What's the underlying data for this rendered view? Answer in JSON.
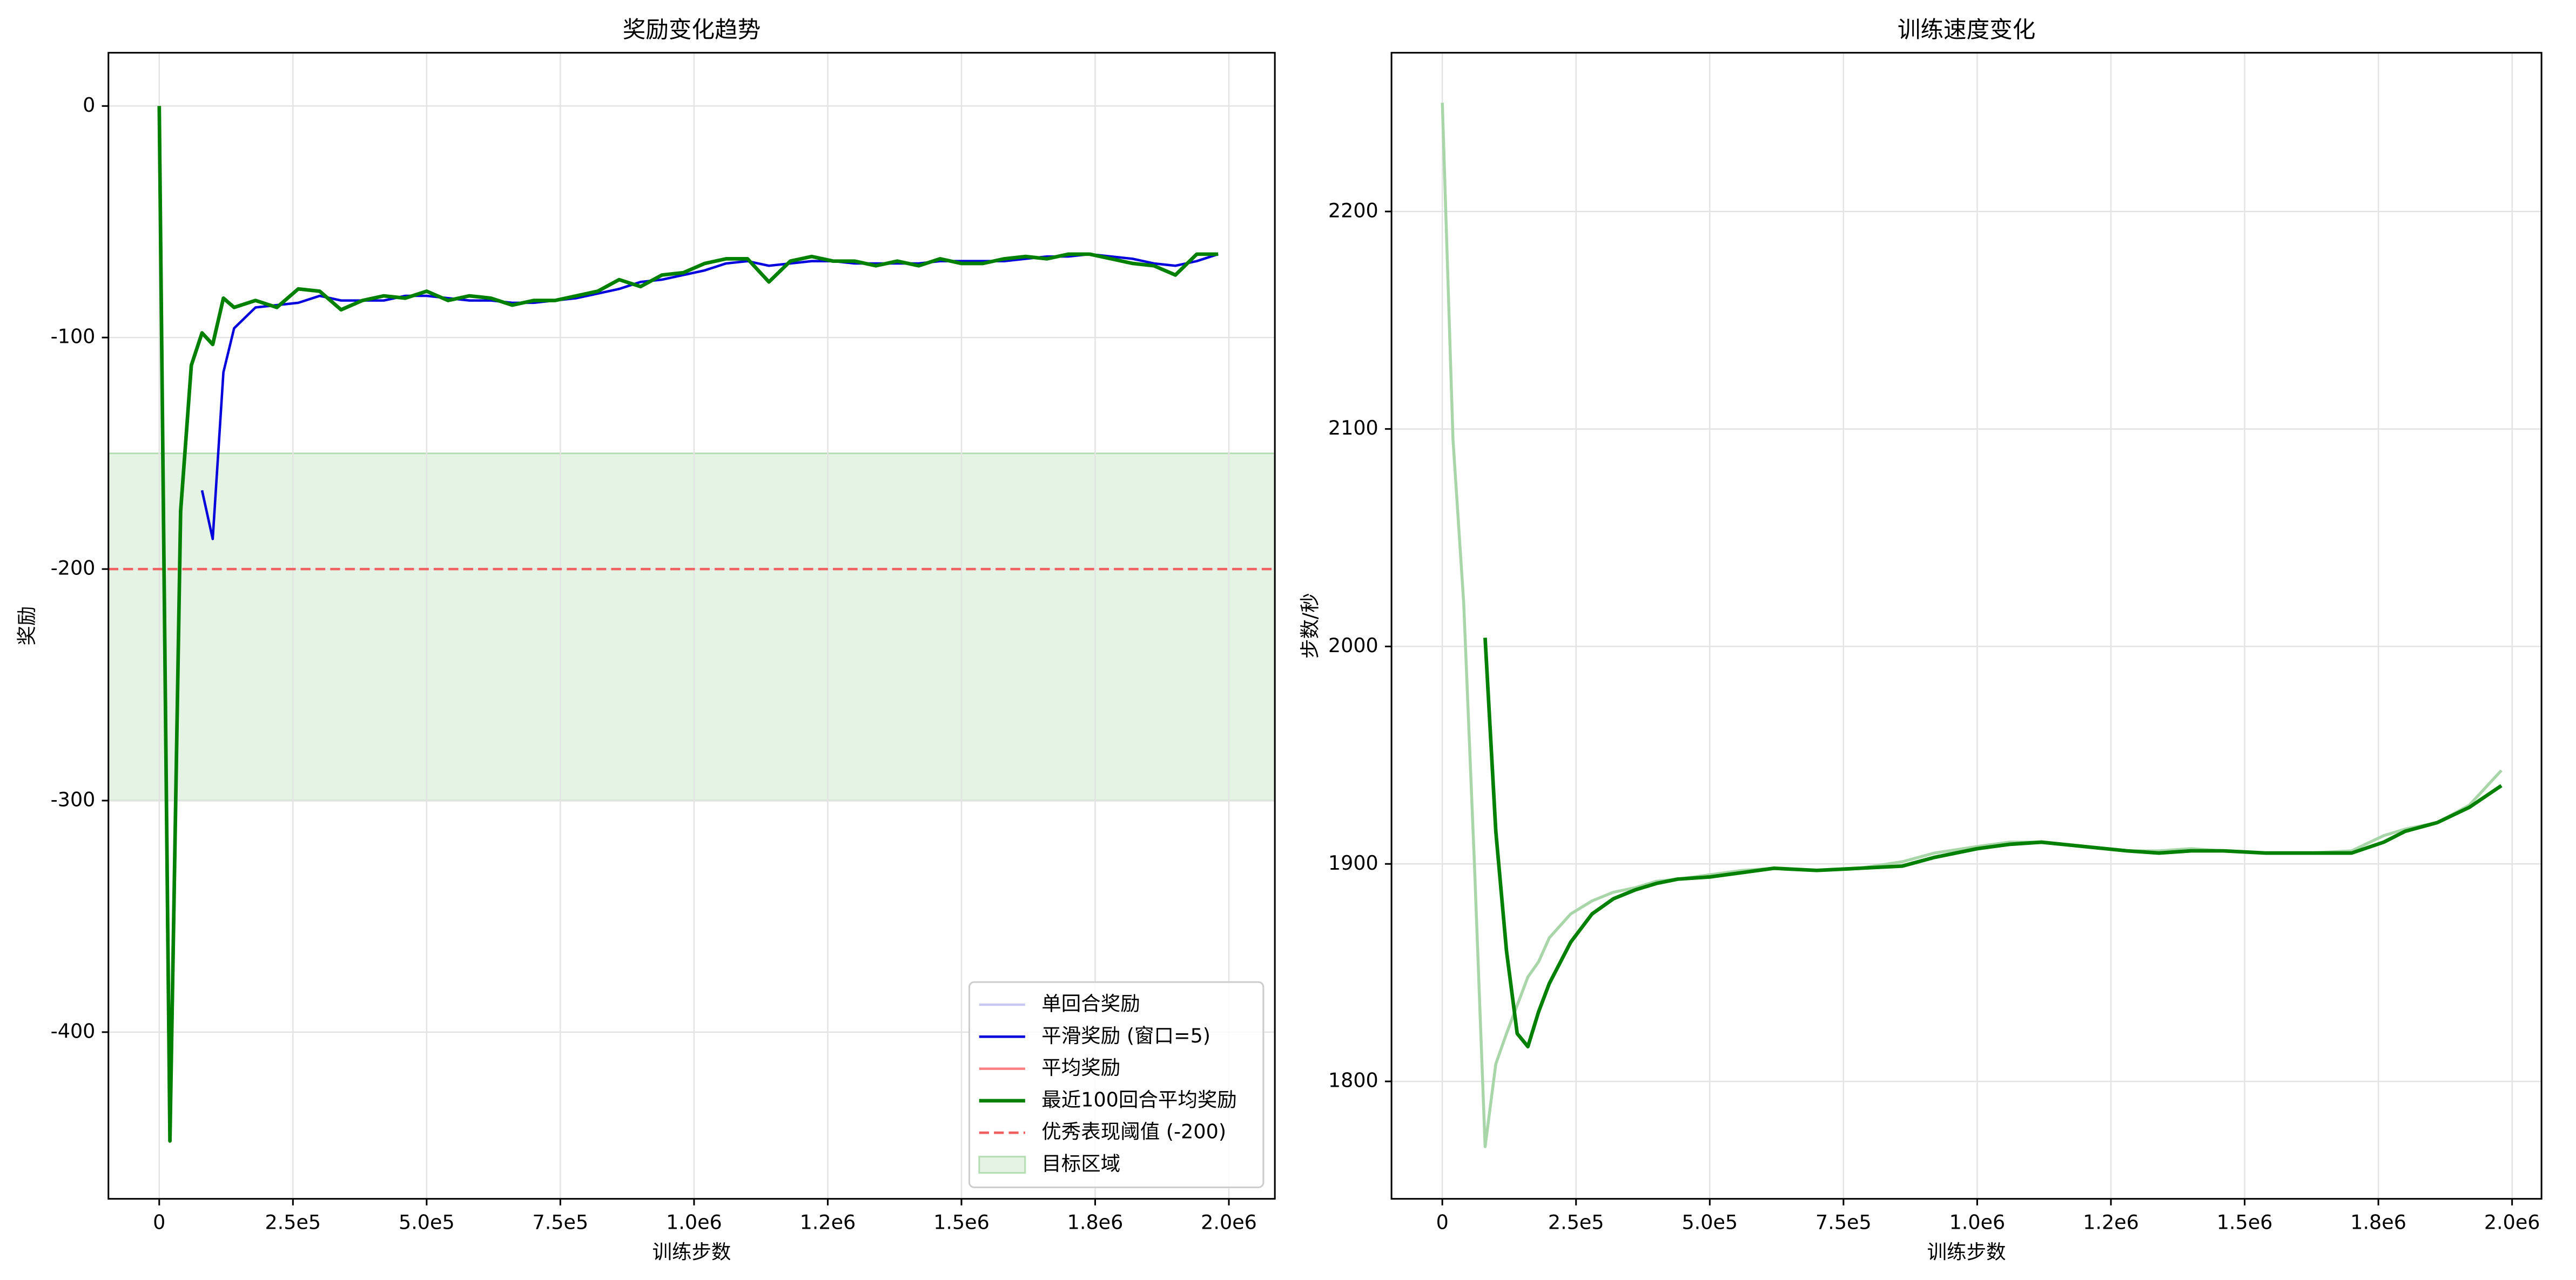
{
  "chart_data": [
    {
      "type": "line",
      "title": "奖励变化趋势",
      "xlabel": "训练步数",
      "ylabel": "奖励",
      "xlim": [
        -95000,
        2086000
      ],
      "ylim": [
        -472,
        23
      ],
      "xticks": [
        0,
        {
          "value": 250000,
          "label": "2.5e5"
        },
        {
          "value": 500000,
          "label": "5.0e5"
        },
        {
          "value": 750000,
          "label": "7.5e5"
        },
        {
          "value": 1000000,
          "label": "1.0e6"
        },
        {
          "value": 1250000,
          "label": "1.2e6"
        },
        {
          "value": 1500000,
          "label": "1.5e6"
        },
        {
          "value": 1750000,
          "label": "1.8e6"
        },
        {
          "value": 2000000,
          "label": "2.0e6"
        }
      ],
      "yticks": [
        -400,
        -300,
        -200,
        -100,
        0
      ],
      "grid": true,
      "legend": "lower right",
      "x": [
        0,
        20000,
        40000,
        60000,
        80000,
        100000,
        120000,
        140000,
        180000,
        220000,
        260000,
        300000,
        340000,
        380000,
        420000,
        460000,
        500000,
        540000,
        580000,
        620000,
        660000,
        700000,
        740000,
        780000,
        820000,
        860000,
        900000,
        940000,
        980000,
        1020000,
        1060000,
        1100000,
        1140000,
        1180000,
        1220000,
        1260000,
        1300000,
        1340000,
        1380000,
        1420000,
        1460000,
        1500000,
        1540000,
        1580000,
        1620000,
        1660000,
        1700000,
        1740000,
        1780000,
        1820000,
        1860000,
        1900000,
        1940000,
        1980000
      ],
      "series": [
        {
          "name": "单回合奖励",
          "color": "#c8c8f0",
          "linewidth": 1.5
        },
        {
          "name": "平滑奖励 (窗口=5)",
          "color": "#0000dd",
          "linewidth": 1.5,
          "values": [
            null,
            null,
            null,
            null,
            -166,
            -187,
            -115,
            -96,
            -87,
            -86,
            -85,
            -82,
            -84,
            -84,
            -84,
            -82,
            -82,
            -83,
            -84,
            -84,
            -85,
            -85,
            -84,
            -83,
            -81,
            -79,
            -76,
            -75,
            -73,
            -71,
            -68,
            -67,
            -69,
            -68,
            -67,
            -67,
            -68,
            -68,
            -68,
            -68,
            -67,
            -67,
            -67,
            -67,
            -66,
            -65,
            -65,
            -64,
            -65,
            -66,
            -68,
            -69,
            -67,
            -64
          ]
        },
        {
          "name": "平均奖励",
          "color": "#ff8080",
          "linewidth": 1.5
        },
        {
          "name": "最近100回合平均奖励",
          "color": "#008000",
          "linewidth": 2.2,
          "values": [
            0,
            -447,
            -175,
            -112,
            -98,
            -103,
            -83,
            -87,
            -84,
            -87,
            -79,
            -80,
            -88,
            -84,
            -82,
            -83,
            -80,
            -84,
            -82,
            -83,
            -86,
            -84,
            -84,
            -82,
            -80,
            -75,
            -78,
            -73,
            -72,
            -68,
            -66,
            -66,
            -76,
            -67,
            -65,
            -67,
            -67,
            -69,
            -67,
            -69,
            -66,
            -68,
            -68,
            -66,
            -65,
            -66,
            -64,
            -64,
            -66,
            -68,
            -69,
            -73,
            -64,
            -64
          ]
        }
      ],
      "threshold": {
        "name": "优秀表现阈值 (-200)",
        "value": -200,
        "color": "#f06060"
      },
      "band": {
        "name": "目标区域",
        "range": [
          -300,
          -150
        ],
        "color": "#2ca02c"
      }
    },
    {
      "type": "line",
      "title": "训练速度变化",
      "xlabel": "训练步数",
      "ylabel": "步数/秒",
      "xlim": [
        -95000,
        2055000
      ],
      "ylim": [
        1746,
        2273
      ],
      "xticks": [
        0,
        {
          "value": 250000,
          "label": "2.5e5"
        },
        {
          "value": 500000,
          "label": "5.0e5"
        },
        {
          "value": 750000,
          "label": "7.5e5"
        },
        {
          "value": 1000000,
          "label": "1.0e6"
        },
        {
          "value": 1250000,
          "label": "1.2e6"
        },
        {
          "value": 1500000,
          "label": "1.5e6"
        },
        {
          "value": 1750000,
          "label": "1.8e6"
        },
        {
          "value": 2000000,
          "label": "2.0e6"
        }
      ],
      "yticks": [
        1800,
        1900,
        2000,
        2100,
        2200
      ],
      "grid": true,
      "x": [
        0,
        20000,
        40000,
        60000,
        80000,
        100000,
        120000,
        140000,
        160000,
        180000,
        200000,
        240000,
        280000,
        320000,
        360000,
        400000,
        440000,
        500000,
        560000,
        620000,
        700000,
        780000,
        860000,
        920000,
        1000000,
        1060000,
        1120000,
        1200000,
        1280000,
        1340000,
        1400000,
        1460000,
        1540000,
        1620000,
        1700000,
        1760000,
        1800000,
        1860000,
        1920000,
        1980000
      ],
      "series": [
        {
          "color": "#a8d6a8",
          "linewidth": 1.8,
          "values": [
            2250,
            2095,
            2020,
            1900,
            1770,
            1808,
            1822,
            1835,
            1848,
            1855,
            1866,
            1877,
            1883,
            1887,
            1889,
            1892,
            1893,
            1895,
            1897,
            1898,
            1897,
            1898,
            1901,
            1905,
            1908,
            1910,
            1910,
            1908,
            1906,
            1906,
            1907,
            1906,
            1905,
            1905,
            1906,
            1913,
            1916,
            1919,
            1927,
            1943
          ]
        },
        {
          "color": "#008000",
          "linewidth": 2.2,
          "values": [
            null,
            null,
            null,
            null,
            2004,
            1915,
            1860,
            1822,
            1816,
            1832,
            1845,
            1864,
            1877,
            1884,
            1888,
            1891,
            1893,
            1894,
            1896,
            1898,
            1897,
            1898,
            1899,
            1903,
            1907,
            1909,
            1910,
            1908,
            1906,
            1905,
            1906,
            1906,
            1905,
            1905,
            1905,
            1910,
            1915,
            1919,
            1926,
            1936
          ]
        }
      ]
    }
  ]
}
